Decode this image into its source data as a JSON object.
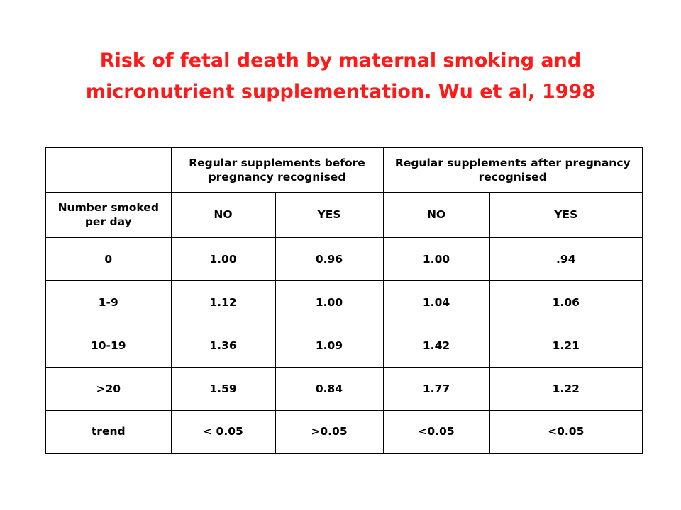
{
  "title": {
    "line1": "Risk of fetal death by maternal smoking and",
    "line2": "micronutrient supplementation.  Wu et al, 1998"
  },
  "table": {
    "corner": "",
    "group_headers": [
      "Regular supplements before pregnancy recognised",
      "Regular supplements after pregnancy recognised"
    ],
    "row_header_label": "Number smoked per day",
    "sub_headers": [
      "NO",
      "YES",
      "NO",
      "YES"
    ],
    "rows": [
      {
        "label": "0",
        "values": [
          "1.00",
          "0.96",
          "1.00",
          ".94"
        ]
      },
      {
        "label": "1-9",
        "values": [
          "1.12",
          "1.00",
          "1.04",
          "1.06"
        ]
      },
      {
        "label": "10-19",
        "values": [
          "1.36",
          "1.09",
          "1.42",
          "1.21"
        ]
      },
      {
        "label": ">20",
        "values": [
          "1.59",
          "0.84",
          "1.77",
          "1.22"
        ]
      },
      {
        "label": "trend",
        "values": [
          "< 0.05",
          ">0.05",
          "<0.05",
          "<0.05"
        ]
      }
    ]
  },
  "colors": {
    "title": "#ff1a1a",
    "text": "#000000",
    "background": "#ffffff"
  }
}
